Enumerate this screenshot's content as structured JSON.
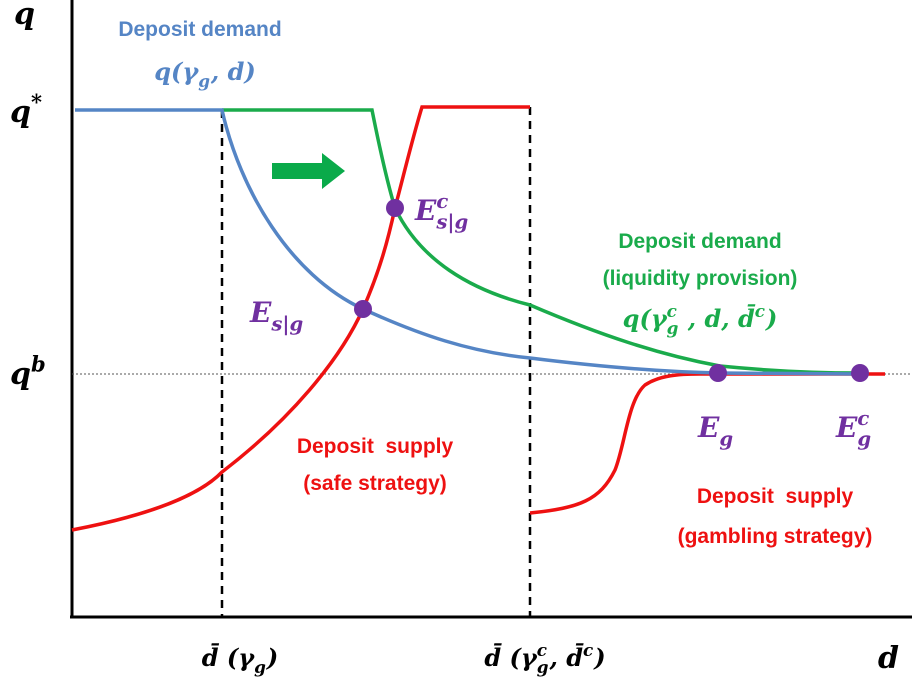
{
  "labels": {
    "y_axis": [
      {
        "t": "q"
      }
    ],
    "x_axis": [
      {
        "t": "d"
      }
    ],
    "q_star": [
      {
        "t": "q"
      },
      {
        "t": "*",
        "s": "sup"
      }
    ],
    "q_b": [
      {
        "t": "q"
      },
      {
        "t": "b",
        "s": "sup"
      }
    ],
    "blue_title": [
      {
        "t": "Deposit demand"
      }
    ],
    "blue_formula": [
      {
        "t": "q(γ"
      },
      {
        "t": "g",
        "s": "sub"
      },
      {
        "t": ", d)"
      }
    ],
    "green_title": [
      {
        "t": "Deposit demand"
      }
    ],
    "green_note": [
      {
        "t": "(liquidity provision)"
      }
    ],
    "green_formula": [
      {
        "t": "q(γ"
      },
      {
        "t": "c",
        "s": "sup"
      },
      {
        "t": "g",
        "s": "sub",
        "stack": true
      },
      {
        "t": " , d, d̄"
      },
      {
        "t": "c",
        "s": "sup"
      },
      {
        "t": ")"
      }
    ],
    "safe_title": [
      {
        "t": "Deposit  supply"
      }
    ],
    "safe_note": [
      {
        "t": "(safe strategy)"
      }
    ],
    "gamble_title": [
      {
        "t": "Deposit  supply"
      }
    ],
    "gamble_note": [
      {
        "t": "(gambling strategy)"
      }
    ],
    "e_sg_c": [
      {
        "t": "E"
      },
      {
        "t": "c",
        "s": "sup"
      },
      {
        "t": "s|g",
        "s": "sub",
        "stack": true
      }
    ],
    "e_sg": [
      {
        "t": "E"
      },
      {
        "t": "s|g",
        "s": "sub"
      }
    ],
    "e_g": [
      {
        "t": "E"
      },
      {
        "t": "g",
        "s": "sub"
      }
    ],
    "e_g_c": [
      {
        "t": "E"
      },
      {
        "t": "c",
        "s": "sup"
      },
      {
        "t": "g",
        "s": "sub",
        "stack": true
      }
    ],
    "tick_1": [
      {
        "t": "d̄ (γ"
      },
      {
        "t": "g",
        "s": "sub"
      },
      {
        "t": ")"
      }
    ],
    "tick_2": [
      {
        "t": "d̄ (γ"
      },
      {
        "t": "c",
        "s": "sup"
      },
      {
        "t": "g",
        "s": "sub",
        "stack": true
      },
      {
        "t": ", d̄"
      },
      {
        "t": "c",
        "s": "sup"
      },
      {
        "t": ")"
      }
    ]
  }
}
